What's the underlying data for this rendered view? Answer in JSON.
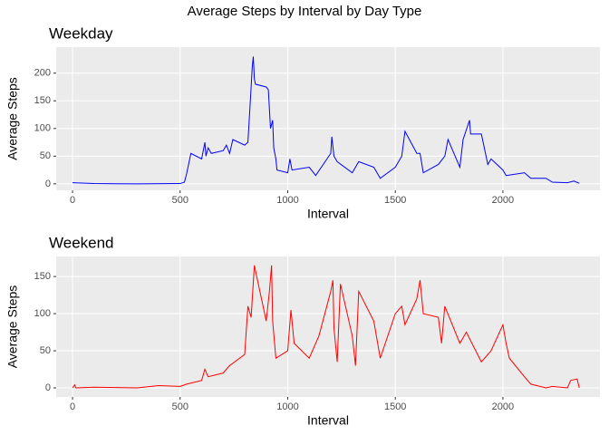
{
  "title": "Average Steps by Interval by Day Type",
  "chart_data": [
    {
      "type": "line",
      "title": "Weekday",
      "x_label": "Interval",
      "y_label": "Average Steps",
      "x": [
        0,
        100,
        300,
        500,
        520,
        530,
        550,
        600,
        615,
        620,
        630,
        645,
        700,
        715,
        730,
        745,
        800,
        815,
        830,
        835,
        840,
        845,
        850,
        900,
        910,
        920,
        930,
        935,
        945,
        950,
        1000,
        1010,
        1020,
        1100,
        1130,
        1200,
        1205,
        1215,
        1230,
        1300,
        1330,
        1400,
        1430,
        1500,
        1530,
        1545,
        1600,
        1615,
        1630,
        1700,
        1730,
        1745,
        1800,
        1815,
        1845,
        1850,
        1900,
        1930,
        1945,
        2000,
        2015,
        2100,
        2130,
        2200,
        2230,
        2300,
        2330,
        2355
      ],
      "series": [
        {
          "name": "Weekday",
          "color": "#0000ff",
          "values": [
            2,
            0.5,
            0,
            0.5,
            3,
            18,
            55,
            45,
            75,
            50,
            65,
            55,
            60,
            70,
            55,
            80,
            70,
            75,
            175,
            210,
            230,
            190,
            180,
            175,
            170,
            100,
            115,
            65,
            45,
            25,
            20,
            45,
            25,
            30,
            15,
            55,
            85,
            50,
            40,
            20,
            40,
            30,
            10,
            30,
            50,
            95,
            55,
            55,
            20,
            35,
            50,
            80,
            30,
            80,
            115,
            90,
            90,
            35,
            45,
            25,
            15,
            20,
            10,
            10,
            3,
            2,
            5,
            1
          ]
        }
      ],
      "xlim": [
        -76,
        2451
      ],
      "xticks": [
        0,
        500,
        1000,
        1500,
        2000
      ],
      "ylim": [
        -11.7,
        247
      ],
      "yticks": [
        0,
        50,
        100,
        150,
        200
      ],
      "grid": true
    },
    {
      "type": "line",
      "title": "Weekend",
      "x_label": "Interval",
      "y_label": "Average Steps",
      "x": [
        0,
        10,
        15,
        100,
        300,
        400,
        500,
        530,
        600,
        615,
        630,
        700,
        730,
        800,
        815,
        830,
        845,
        900,
        915,
        925,
        930,
        945,
        1000,
        1015,
        1030,
        1100,
        1145,
        1200,
        1210,
        1215,
        1230,
        1245,
        1300,
        1315,
        1330,
        1400,
        1430,
        1500,
        1530,
        1545,
        1600,
        1615,
        1630,
        1700,
        1715,
        1730,
        1800,
        1830,
        1900,
        1945,
        2000,
        2015,
        2030,
        2100,
        2130,
        2200,
        2230,
        2300,
        2315,
        2345,
        2355
      ],
      "series": [
        {
          "name": "Weekend",
          "color": "#ff0000",
          "values": [
            0,
            4,
            0,
            1,
            0,
            3,
            2,
            5,
            10,
            25,
            15,
            20,
            30,
            45,
            110,
            95,
            165,
            90,
            130,
            165,
            90,
            40,
            50,
            105,
            60,
            40,
            70,
            130,
            145,
            80,
            35,
            140,
            70,
            30,
            130,
            90,
            40,
            100,
            110,
            85,
            120,
            145,
            100,
            95,
            60,
            110,
            60,
            75,
            35,
            50,
            85,
            60,
            40,
            15,
            5,
            0,
            2,
            0,
            10,
            12,
            0
          ]
        }
      ],
      "xlim": [
        -76,
        2451
      ],
      "xticks": [
        0,
        500,
        1000,
        1500,
        2000
      ],
      "ylim": [
        -12.2,
        177
      ],
      "yticks": [
        0,
        50,
        100,
        150
      ],
      "grid": true
    }
  ]
}
